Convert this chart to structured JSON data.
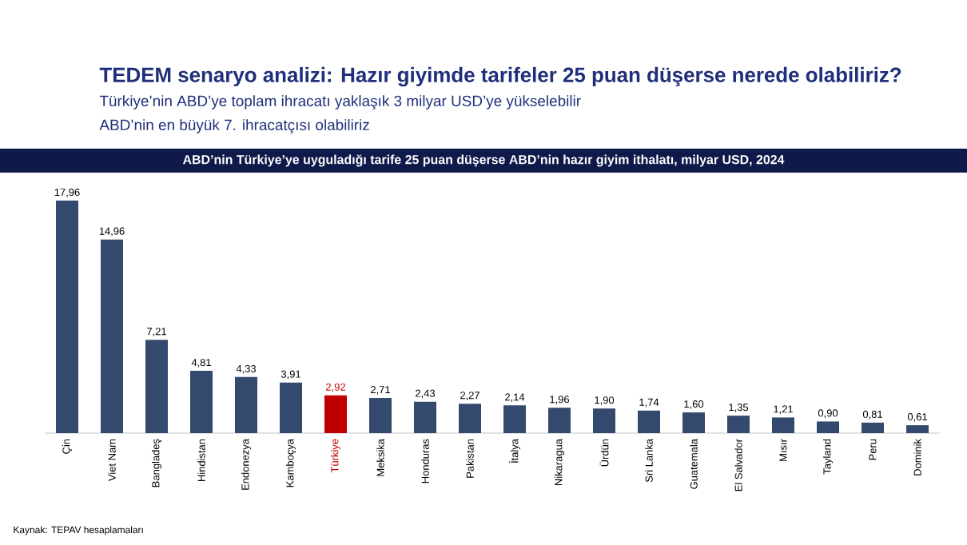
{
  "chart_data": {
    "type": "bar",
    "title": "ABD’nin Türkiye’ye uyguladığı tarife 25 puan düşerse ABD’nin hazır giyim ithalatı, milyar USD, 2024",
    "annotations": [
      "TEDEM senaryo analizi: Hazır giyimde tarifeler 25 puan düşerse nerede olabiliriz?",
      "Türkiye’nin ABD’ye toplam ihracatı yaklaşık 3 milyar USD’ye yükselebilir",
      "ABD’nin en büyük 7. ihracatçısı olabiliriz",
      "Kaynak: TEPAV hesaplamaları"
    ],
    "categories": [
      "Çin",
      "Viet Nam",
      "Bangladeş",
      "Hindistan",
      "Endonezya",
      "Kamboçya",
      "Türkiye",
      "Meksika",
      "Honduras",
      "Pakistan",
      "İtalya",
      "Nikaragua",
      "Ürdün",
      "Sri Lanka",
      "Guatemala",
      "El Salvador",
      "Mısır",
      "Tayland",
      "Peru",
      "Dominik"
    ],
    "values": [
      17.96,
      14.96,
      7.21,
      4.81,
      4.33,
      3.91,
      2.92,
      2.71,
      2.43,
      2.27,
      2.14,
      1.96,
      1.9,
      1.74,
      1.6,
      1.35,
      1.21,
      0.9,
      0.81,
      0.61
    ],
    "value_labels": [
      "17,96",
      "14,96",
      "7,21",
      "4,81",
      "4,33",
      "3,91",
      "2,92",
      "2,71",
      "2,43",
      "2,27",
      "2,14",
      "1,96",
      "1,90",
      "1,74",
      "1,60",
      "1,35",
      "1,21",
      "0,90",
      "0,81",
      "0,61"
    ],
    "colors": [
      "#34496e",
      "#34496e",
      "#34496e",
      "#34496e",
      "#34496e",
      "#34496e",
      "#c00000",
      "#34496e",
      "#34496e",
      "#34496e",
      "#34496e",
      "#34496e",
      "#34496e",
      "#34496e",
      "#34496e",
      "#34496e",
      "#34496e",
      "#34496e",
      "#34496e",
      "#34496e"
    ]
  }
}
